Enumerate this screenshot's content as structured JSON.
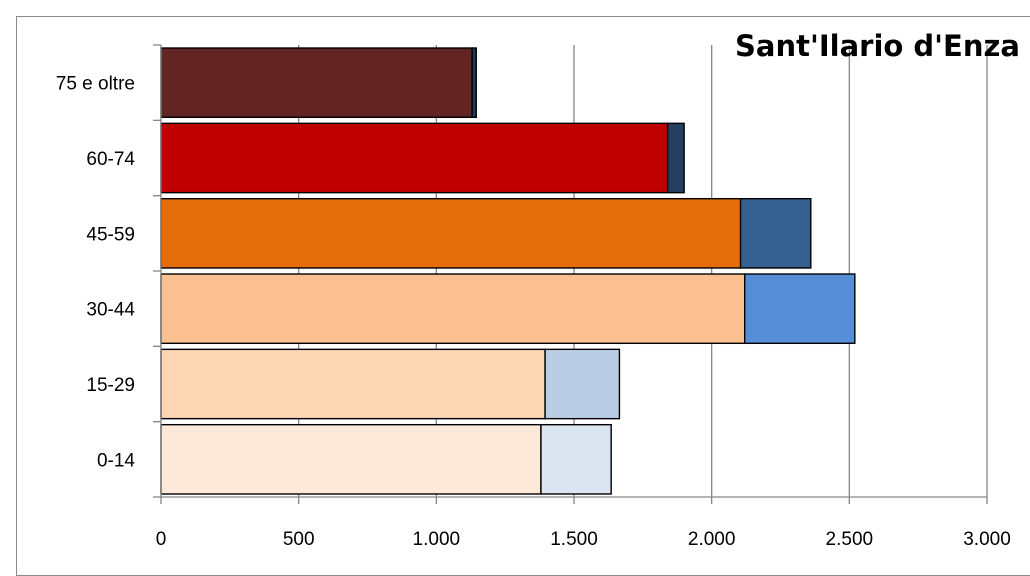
{
  "chart_data": {
    "type": "bar",
    "orientation": "horizontal",
    "stacked": true,
    "title": "Sant'Ilario d'Enza",
    "categories": [
      "75 e oltre",
      "60-74",
      "45-59",
      "30-44",
      "15-29",
      "0-14"
    ],
    "series": [
      {
        "values": [
          1130,
          1840,
          2105,
          2120,
          1395,
          1380
        ],
        "colors": [
          "#632523",
          "#c00000",
          "#e46c0a",
          "#fac090",
          "#fcd5b5",
          "#fde9d9"
        ]
      },
      {
        "values": [
          15,
          60,
          255,
          400,
          270,
          255
        ],
        "colors": [
          "#1f3864",
          "#243f60",
          "#366092",
          "#558ed5",
          "#b9cde5",
          "#dce6f2"
        ]
      }
    ],
    "xlim": [
      0,
      3000
    ],
    "xticks": [
      0,
      500,
      1000,
      1500,
      2000,
      2500,
      3000
    ],
    "xtick_labels": [
      "0",
      "500",
      "1.000",
      "1.500",
      "2.000",
      "2.500",
      "3.000"
    ],
    "grid": "vertical",
    "legend": "none"
  }
}
